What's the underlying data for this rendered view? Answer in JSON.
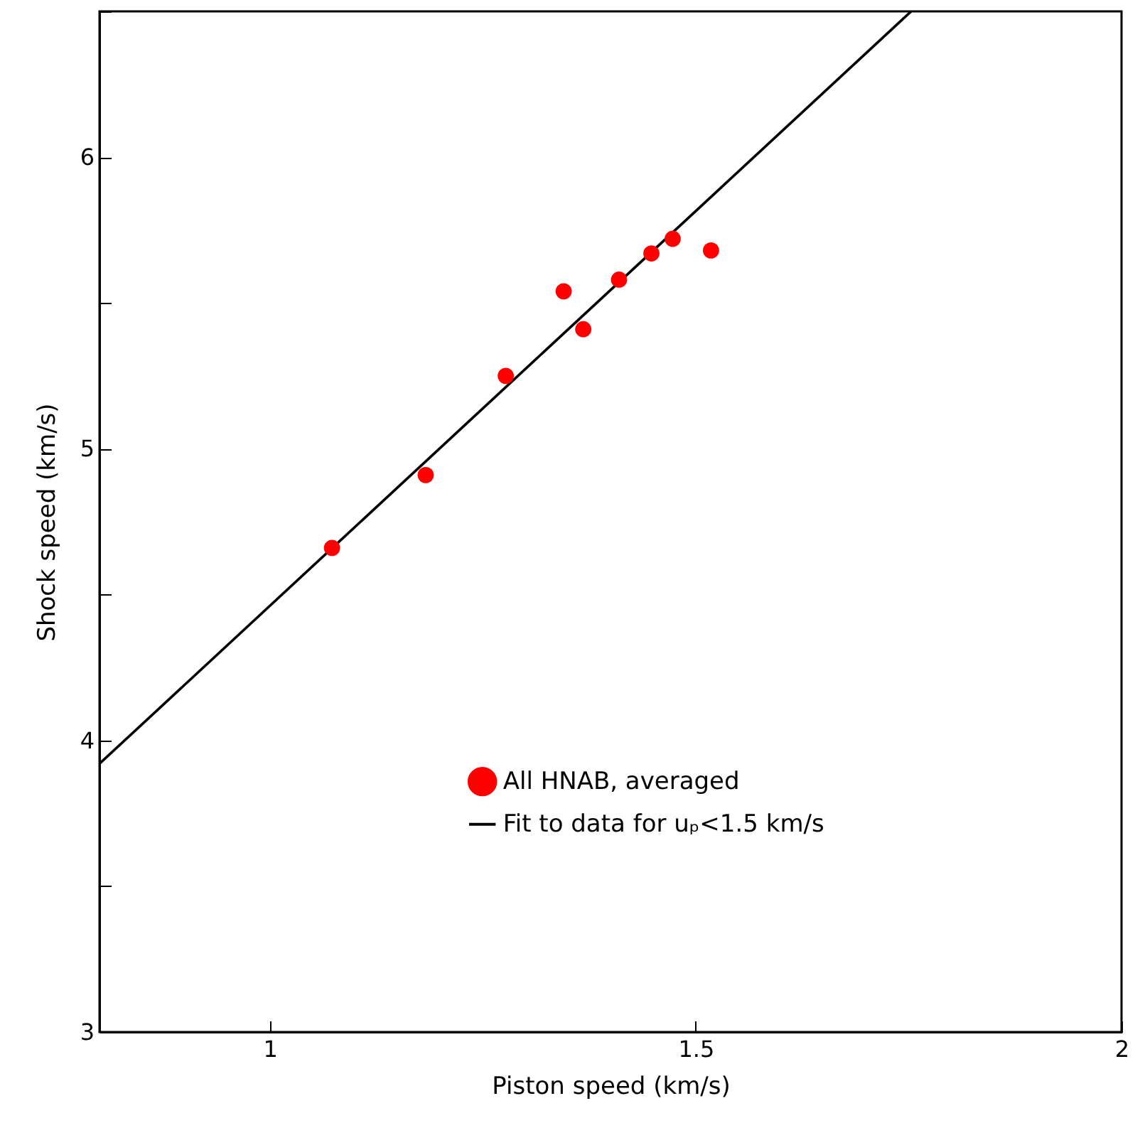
{
  "chart_data": {
    "type": "scatter",
    "xlabel": "Piston speed  (km/s)",
    "ylabel": "Shock speed (km/s)",
    "xlim": [
      0.8,
      2
    ],
    "xticks": [
      1,
      1.5,
      2
    ],
    "ylim": [
      3,
      6.5
    ],
    "yticks": [
      3,
      {
        "value": 3.5,
        "label": null
      },
      4,
      {
        "value": 4.5,
        "label": null
      },
      5,
      {
        "value": 5.5,
        "label": null
      },
      6,
      {
        "value": 6.5,
        "label": null
      }
    ],
    "grid": false,
    "legend": "bottom",
    "series": [
      {
        "name": "All HNAB, averaged",
        "color": "#ff0000",
        "marker": "circle",
        "x": [
          1.073,
          1.183,
          1.277,
          1.345,
          1.368,
          1.41,
          1.448,
          1.473,
          1.518
        ],
        "values": [
          4.66,
          4.91,
          5.25,
          5.54,
          5.41,
          5.58,
          5.67,
          5.72,
          5.68
        ]
      },
      {
        "name": "Fit to data for uₚ<1.5 km/s",
        "type": "line",
        "color": "#000000",
        "marker": "none",
        "line_style": "solid",
        "x": [
          0.8,
          1.753
        ],
        "values": [
          3.92,
          6.5
        ]
      }
    ]
  }
}
